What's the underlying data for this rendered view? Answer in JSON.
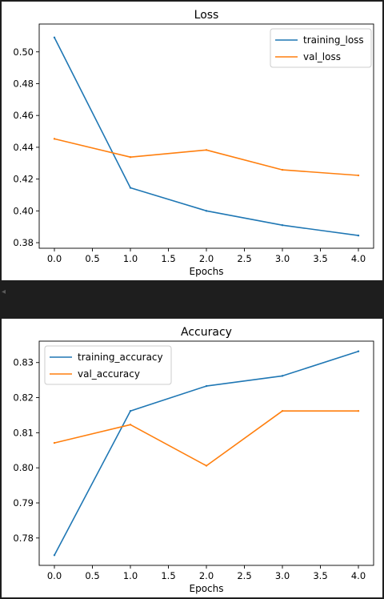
{
  "chart_data": [
    {
      "type": "line",
      "title": "Loss",
      "xlabel": "Epochs",
      "ylabel": "",
      "x": [
        0,
        1,
        2,
        3,
        4
      ],
      "xlim": [
        -0.2,
        4.2
      ],
      "ylim": [
        0.3765,
        0.5175
      ],
      "xticks": [
        0.0,
        0.5,
        1.0,
        1.5,
        2.0,
        2.5,
        3.0,
        3.5,
        4.0
      ],
      "xtick_labels": [
        "0.0",
        "0.5",
        "1.0",
        "1.5",
        "2.0",
        "2.5",
        "3.0",
        "3.5",
        "4.0"
      ],
      "yticks": [
        0.38,
        0.4,
        0.42,
        0.44,
        0.46,
        0.48,
        0.5
      ],
      "ytick_labels": [
        "0.38",
        "0.40",
        "0.42",
        "0.44",
        "0.46",
        "0.48",
        "0.50"
      ],
      "series": [
        {
          "name": "training_loss",
          "color": "#1f77b4",
          "values": [
            0.509,
            0.4145,
            0.4,
            0.391,
            0.3845
          ]
        },
        {
          "name": "val_loss",
          "color": "#ff7f0e",
          "values": [
            0.4453,
            0.4338,
            0.4383,
            0.4258,
            0.4223
          ]
        }
      ],
      "legend": "upper right",
      "grid": false
    },
    {
      "type": "line",
      "title": "Accuracy",
      "xlabel": "Epochs",
      "ylabel": "",
      "x": [
        0,
        1,
        2,
        3,
        4
      ],
      "xlim": [
        -0.2,
        4.2
      ],
      "ylim": [
        0.7722,
        0.8361
      ],
      "xticks": [
        0.0,
        0.5,
        1.0,
        1.5,
        2.0,
        2.5,
        3.0,
        3.5,
        4.0
      ],
      "xtick_labels": [
        "0.0",
        "0.5",
        "1.0",
        "1.5",
        "2.0",
        "2.5",
        "3.0",
        "3.5",
        "4.0"
      ],
      "yticks": [
        0.78,
        0.79,
        0.8,
        0.81,
        0.82,
        0.83
      ],
      "ytick_labels": [
        "0.78",
        "0.79",
        "0.80",
        "0.81",
        "0.82",
        "0.83"
      ],
      "series": [
        {
          "name": "training_accuracy",
          "color": "#1f77b4",
          "values": [
            0.7751,
            0.8162,
            0.8233,
            0.8262,
            0.8332
          ]
        },
        {
          "name": "val_accuracy",
          "color": "#ff7f0e",
          "values": [
            0.8071,
            0.8123,
            0.8006,
            0.8162,
            0.8162
          ]
        }
      ],
      "legend": "upper left",
      "grid": false
    }
  ]
}
